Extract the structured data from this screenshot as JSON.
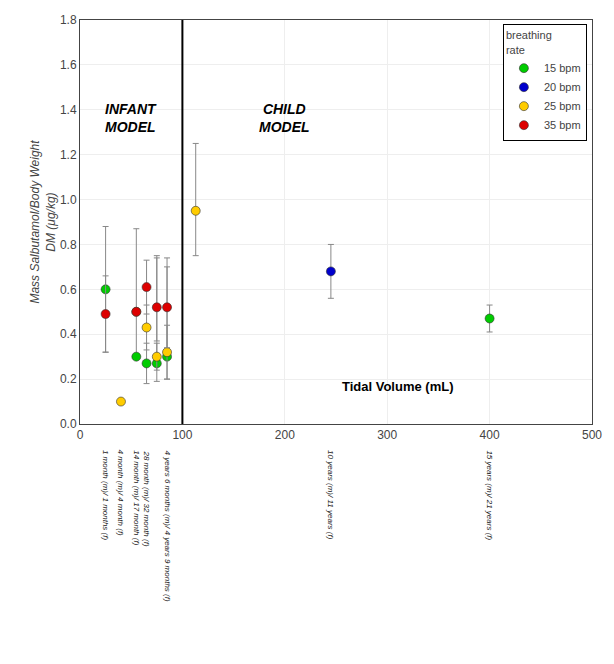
{
  "chart_data": {
    "type": "scatter",
    "marker": "circle",
    "ylabel": "Mass Salbutamol/Body Weight\nDM (μg/kg)",
    "xlabel": "Tidal Volume (mL)",
    "xlim": [
      0,
      500
    ],
    "ylim": [
      0.0,
      1.8
    ],
    "xticks": [
      0,
      100,
      200,
      300,
      400,
      500
    ],
    "yticks": [
      {
        "value": 0,
        "label": "0.0"
      },
      0.2,
      0.4,
      0.6,
      0.8,
      {
        "value": 1,
        "label": "1.0"
      },
      1.2,
      1.4,
      1.6,
      1.8
    ],
    "grid": true,
    "legend": "upper right",
    "legend_title": "breathing\nrate",
    "vline": 100,
    "series": [
      {
        "name": "15 bpm",
        "color": "#00cc00",
        "x": [
          25,
          55,
          65,
          75,
          85,
          400
        ],
        "values": [
          0.6,
          0.3,
          0.27,
          0.27,
          0.3,
          0.47
        ],
        "error_low": [
          0.28,
          0.0,
          0.09,
          0.08,
          0.1,
          0.06
        ],
        "error_high": [
          0.28,
          0.57,
          0.09,
          0.09,
          0.44,
          0.06
        ]
      },
      {
        "name": "20 bpm",
        "color": "#0000cc",
        "x": [
          245
        ],
        "values": [
          0.68
        ],
        "error_low": [
          0.12
        ],
        "error_high": [
          0.12
        ]
      },
      {
        "name": "25 bpm",
        "color": "#ffcc00",
        "x": [
          40,
          55,
          65,
          75,
          85,
          113
        ],
        "values": [
          0.1,
          0.5,
          0.43,
          0.3,
          0.32,
          0.95
        ],
        "error_low": [
          0.0,
          0.0,
          0.1,
          0.06,
          0.12,
          0.2
        ],
        "error_high": [
          0.0,
          0.0,
          0.1,
          0.45,
          0.12,
          0.3
        ]
      },
      {
        "name": "35 bpm",
        "color": "#dd0000",
        "x": [
          25,
          55,
          65,
          75,
          85
        ],
        "values": [
          0.49,
          0.5,
          0.61,
          0.52,
          0.52
        ],
        "error_low": [
          0.17,
          0.0,
          0.12,
          0.15,
          0.18
        ],
        "error_high": [
          0.17,
          0.0,
          0.12,
          0.22,
          0.18
        ]
      }
    ],
    "annotations": [
      {
        "text": "INFANT\nMODEL",
        "x": 50,
        "y": 1.45
      },
      {
        "text": "CHILD\nMODEL",
        "x": 200,
        "y": 1.45
      }
    ],
    "x_labels": [
      {
        "x": 25,
        "label": "1 month (m)/ 1 months (f)"
      },
      {
        "x": 40,
        "label": "4 month (m)/ 4 month (f)"
      },
      {
        "x": 55,
        "label": "14 month (m)/ 17 month (f)"
      },
      {
        "x": 65,
        "label": "28 month (m)/ 32 month (f)"
      },
      {
        "x": 85,
        "label": "4 years 6 months (m)/ 4 years 9 months (f)"
      },
      {
        "x": 245,
        "label": "10 years (m)/ 11 years (f)"
      },
      {
        "x": 400,
        "label": "15 years (m)/ 21 years (f)"
      }
    ]
  }
}
